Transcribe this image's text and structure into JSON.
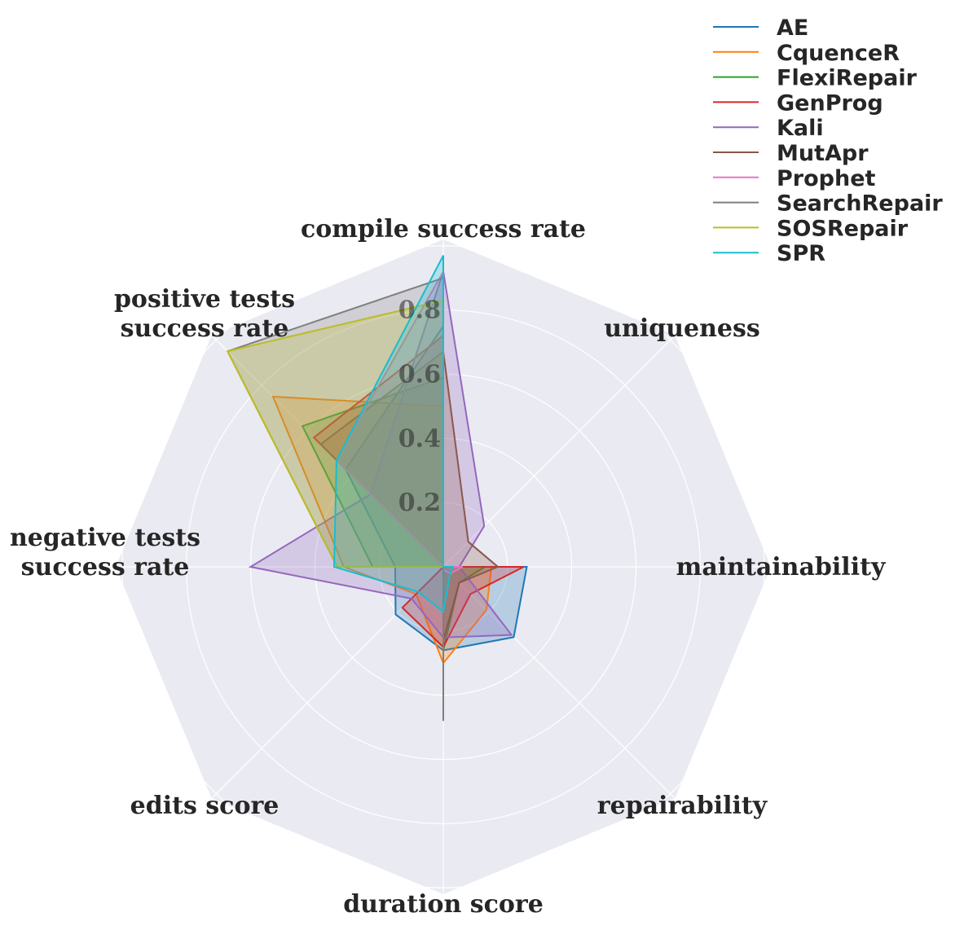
{
  "chart_data": {
    "type": "radar",
    "title": "",
    "axes": [
      "compile success rate",
      "uniqueness",
      "maintainability",
      "repairability",
      "duration score",
      "edits score",
      "negative tests\nsuccess rate",
      "positive tests\nsuccess rate"
    ],
    "rlim": [
      0,
      1.02
    ],
    "rticks": [
      0.2,
      0.4,
      0.6,
      0.8
    ],
    "rtick_labels": [
      "0.2",
      "0.4",
      "0.6",
      "0.8"
    ],
    "grid": true,
    "legend_position": "top-right",
    "series": [
      {
        "name": "AE",
        "color": "#1f77b4",
        "values": [
          0.75,
          0.0,
          0.26,
          0.31,
          0.26,
          0.21,
          0.15,
          0.43
        ]
      },
      {
        "name": "CquenceR",
        "color": "#ff7f0e",
        "values": [
          0.5,
          0.0,
          0.15,
          0.19,
          0.3,
          0.12,
          0.31,
          0.75
        ]
      },
      {
        "name": "FlexiRepair",
        "color": "#2ca02c",
        "values": [
          0.59,
          0.0,
          0.13,
          0.07,
          0.26,
          0.0,
          0.22,
          0.62
        ]
      },
      {
        "name": "GenProg",
        "color": "#d62728",
        "values": [
          0.72,
          0.0,
          0.25,
          0.12,
          0.25,
          0.18,
          0.0,
          0.57
        ]
      },
      {
        "name": "Kali",
        "color": "#9467bd",
        "values": [
          0.92,
          0.18,
          0.05,
          0.3,
          0.22,
          0.14,
          0.6,
          0.32
        ]
      },
      {
        "name": "MutApr",
        "color": "#8c564b",
        "values": [
          0.67,
          0.11,
          0.17,
          0.07,
          0.23,
          0.0,
          0.0,
          0.54
        ]
      },
      {
        "name": "Prophet",
        "color": "#e377c2",
        "values": [
          0.92,
          0.0,
          0.06,
          0.03,
          0.01,
          0.0,
          0.0,
          0.47
        ]
      },
      {
        "name": "SearchRepair",
        "color": "#7f7f7f",
        "values": [
          0.9,
          0.0,
          0.0,
          0.0,
          0.48,
          0.0,
          0.33,
          0.95
        ]
      },
      {
        "name": "SOSRepair",
        "color": "#bcbd22",
        "values": [
          0.83,
          0.0,
          0.0,
          0.0,
          0.0,
          0.0,
          0.33,
          0.95
        ]
      },
      {
        "name": "SPR",
        "color": "#17becf",
        "values": [
          0.97,
          0.0,
          0.03,
          0.03,
          0.14,
          0.11,
          0.34,
          0.47
        ]
      }
    ]
  }
}
